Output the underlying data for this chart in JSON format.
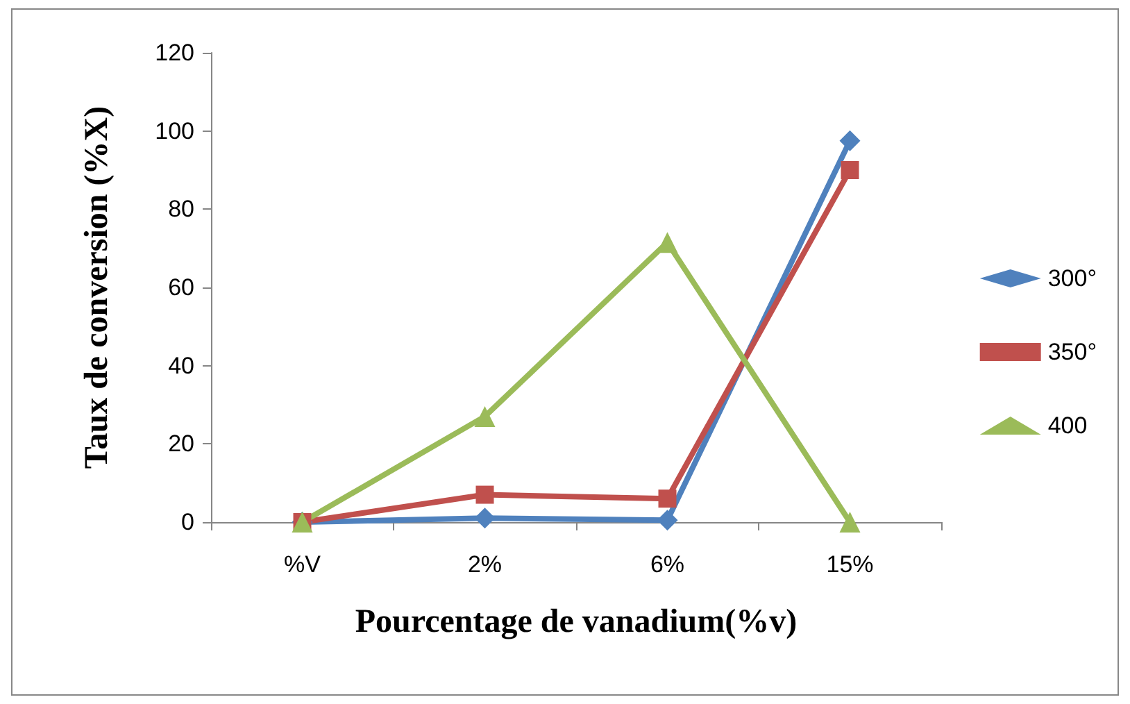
{
  "chart_data": {
    "type": "line",
    "xlabel": "Pourcentage de vanadium(%v)",
    "ylabel": "Taux de conversion (%X)",
    "categories": [
      "%V",
      "2%",
      "6%",
      "15%"
    ],
    "series": [
      {
        "name": "300°",
        "color": "#4f81bd",
        "marker": "diamond",
        "values": [
          0,
          1,
          0.5,
          97.5
        ]
      },
      {
        "name": "350°",
        "color": "#c0504d",
        "marker": "square",
        "values": [
          0,
          7,
          6,
          90
        ]
      },
      {
        "name": "400",
        "color": "#9bbb59",
        "marker": "triangle",
        "values": [
          0,
          27,
          71.5,
          0
        ]
      }
    ],
    "ylim": [
      0,
      120
    ],
    "yticks": [
      0,
      20,
      40,
      60,
      80,
      100,
      120
    ],
    "grid": false,
    "legend": "right",
    "line_style": "solid"
  }
}
